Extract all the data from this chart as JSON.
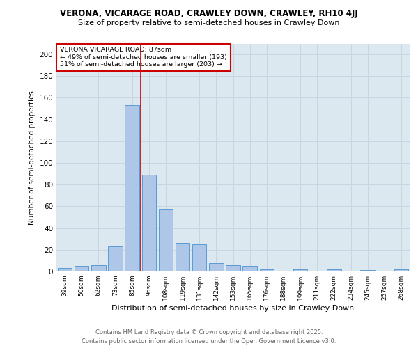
{
  "title1": "VERONA, VICARAGE ROAD, CRAWLEY DOWN, CRAWLEY, RH10 4JJ",
  "title2": "Size of property relative to semi-detached houses in Crawley Down",
  "xlabel": "Distribution of semi-detached houses by size in Crawley Down",
  "ylabel": "Number of semi-detached properties",
  "footer1": "Contains HM Land Registry data © Crown copyright and database right 2025.",
  "footer2": "Contains public sector information licensed under the Open Government Licence v3.0.",
  "categories": [
    "39sqm",
    "50sqm",
    "62sqm",
    "73sqm",
    "85sqm",
    "96sqm",
    "108sqm",
    "119sqm",
    "131sqm",
    "142sqm",
    "153sqm",
    "165sqm",
    "176sqm",
    "188sqm",
    "199sqm",
    "211sqm",
    "222sqm",
    "234sqm",
    "245sqm",
    "257sqm",
    "268sqm"
  ],
  "values": [
    3,
    5,
    6,
    23,
    153,
    89,
    57,
    26,
    25,
    8,
    6,
    5,
    2,
    0,
    2,
    0,
    2,
    0,
    1,
    0,
    2
  ],
  "bar_color": "#aec6e8",
  "bar_edge_color": "#5b9bd5",
  "grid_color": "#c8d4e0",
  "background_color": "#dce8f0",
  "red_line_x": 4.5,
  "red_line_color": "#cc0000",
  "annotation_text": "VERONA VICARAGE ROAD: 87sqm\n← 49% of semi-detached houses are smaller (193)\n51% of semi-detached houses are larger (203) →",
  "annotation_box_color": "#ffffff",
  "annotation_box_edge": "#cc0000",
  "ylim": [
    0,
    210
  ],
  "yticks": [
    0,
    20,
    40,
    60,
    80,
    100,
    120,
    140,
    160,
    180,
    200
  ]
}
